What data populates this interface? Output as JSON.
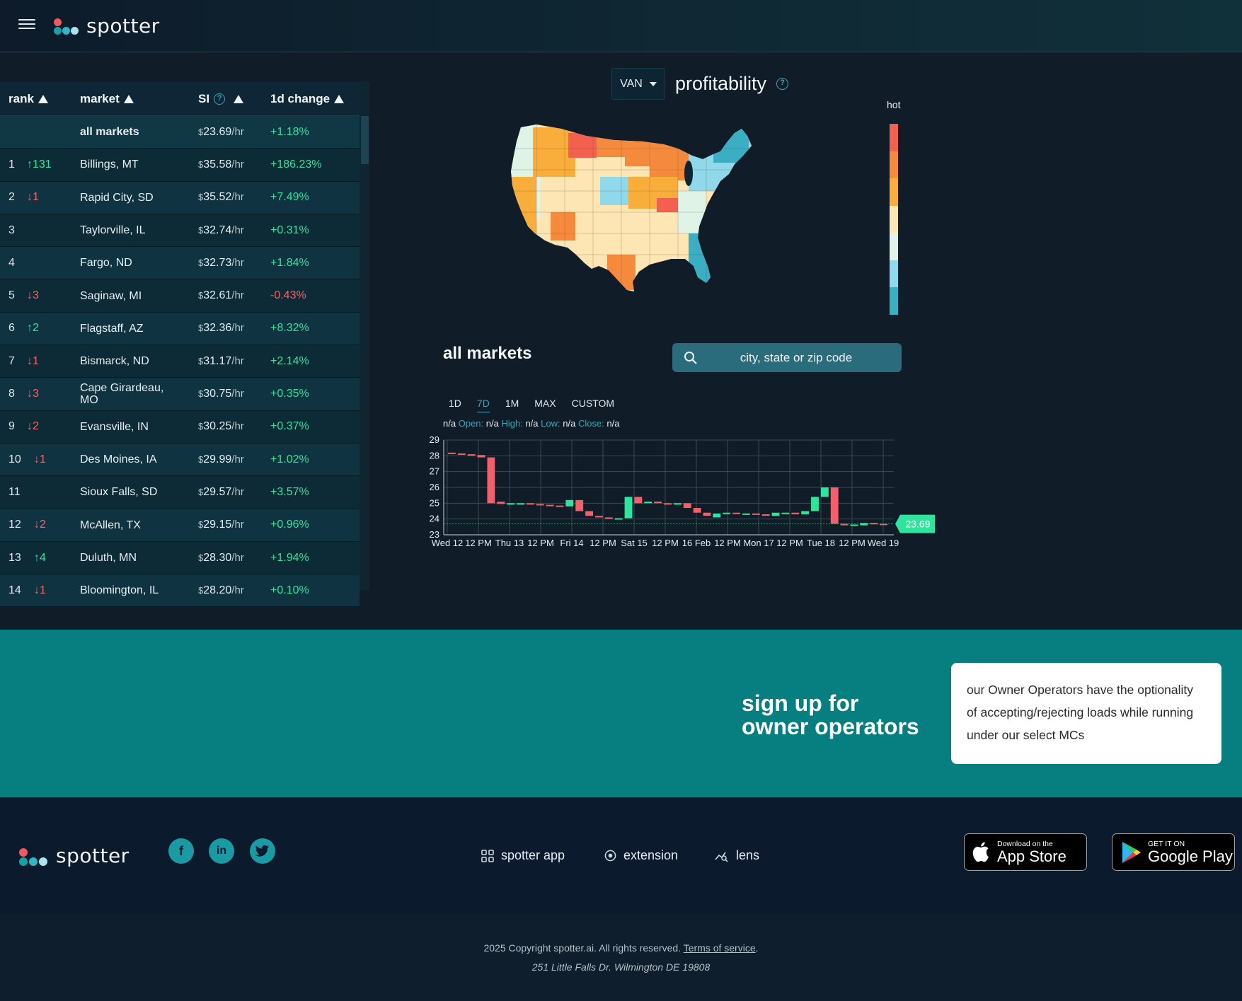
{
  "header": {
    "brand": "spotter"
  },
  "table": {
    "columns": {
      "rank": "rank",
      "market": "market",
      "si": "SI",
      "change": "1d change"
    },
    "all_row": {
      "market": "all markets",
      "si": "23.69",
      "unit": "/hr",
      "change": "+1.18%"
    },
    "rows": [
      {
        "rank": "1",
        "move": "↑131",
        "dir": "up",
        "market": "Billings, MT",
        "si": "35.58",
        "change": "+186.23%",
        "cdir": "up"
      },
      {
        "rank": "2",
        "move": "↓1",
        "dir": "down",
        "market": "Rapid City, SD",
        "si": "35.52",
        "change": "+7.49%",
        "cdir": "up"
      },
      {
        "rank": "3",
        "move": "",
        "dir": "",
        "market": "Taylorville, IL",
        "si": "32.74",
        "change": "+0.31%",
        "cdir": "up"
      },
      {
        "rank": "4",
        "move": "",
        "dir": "",
        "market": "Fargo, ND",
        "si": "32.73",
        "change": "+1.84%",
        "cdir": "up"
      },
      {
        "rank": "5",
        "move": "↓3",
        "dir": "down",
        "market": "Saginaw, MI",
        "si": "32.61",
        "change": "-0.43%",
        "cdir": "down"
      },
      {
        "rank": "6",
        "move": "↑2",
        "dir": "up",
        "market": "Flagstaff, AZ",
        "si": "32.36",
        "change": "+8.32%",
        "cdir": "up"
      },
      {
        "rank": "7",
        "move": "↓1",
        "dir": "down",
        "market": "Bismarck, ND",
        "si": "31.17",
        "change": "+2.14%",
        "cdir": "up"
      },
      {
        "rank": "8",
        "move": "↓3",
        "dir": "down",
        "market": "Cape Girardeau, MO",
        "si": "30.75",
        "change": "+0.35%",
        "cdir": "up"
      },
      {
        "rank": "9",
        "move": "↓2",
        "dir": "down",
        "market": "Evansville, IN",
        "si": "30.25",
        "change": "+0.37%",
        "cdir": "up"
      },
      {
        "rank": "10",
        "move": "↓1",
        "dir": "down",
        "market": "Des Moines, IA",
        "si": "29.99",
        "change": "+1.02%",
        "cdir": "up"
      },
      {
        "rank": "11",
        "move": "",
        "dir": "",
        "market": "Sioux Falls, SD",
        "si": "29.57",
        "change": "+3.57%",
        "cdir": "up"
      },
      {
        "rank": "12",
        "move": "↓2",
        "dir": "down",
        "market": "McAllen, TX",
        "si": "29.15",
        "change": "+0.96%",
        "cdir": "up"
      },
      {
        "rank": "13",
        "move": "↑4",
        "dir": "up",
        "market": "Duluth, MN",
        "si": "28.30",
        "change": "+1.94%",
        "cdir": "up"
      },
      {
        "rank": "14",
        "move": "↓1",
        "dir": "down",
        "market": "Bloomington, IL",
        "si": "28.20",
        "change": "+0.10%",
        "cdir": "up"
      }
    ],
    "unit": "/hr",
    "currency": "$"
  },
  "map_panel": {
    "equipment": "VAN",
    "title": "profitability",
    "legend_label": "hot",
    "legend_colors": [
      "#f2604f",
      "#f58a3c",
      "#f9ad3a",
      "#fde6b4",
      "#dff3e6",
      "#8fd9ea",
      "#3aaec3"
    ]
  },
  "market_panel": {
    "title": "all markets",
    "search_placeholder": "city, state or zip code",
    "ranges": [
      "1D",
      "7D",
      "1M",
      "MAX",
      "CUSTOM"
    ],
    "active_range": "7D",
    "ohlc": {
      "lead": "n/a",
      "open_label": "Open:",
      "open": "n/a",
      "high_label": "High:",
      "high": "n/a",
      "low_label": "Low:",
      "low": "n/a",
      "close_label": "Close:",
      "close": "n/a"
    }
  },
  "chart_data": {
    "type": "candlestick",
    "ylim": [
      23,
      29
    ],
    "yticks": [
      23,
      24,
      25,
      26,
      27,
      28,
      29
    ],
    "xticks": [
      "Wed 12",
      "12 PM",
      "Thu 13",
      "12 PM",
      "Fri 14",
      "12 PM",
      "Sat 15",
      "12 PM",
      "16 Feb",
      "12 PM",
      "Mon 17",
      "12 PM",
      "Tue 18",
      "12 PM",
      "Wed 19"
    ],
    "last_value": "23.69",
    "candles": [
      {
        "o": 28.2,
        "c": 28.15
      },
      {
        "o": 28.15,
        "c": 28.1
      },
      {
        "o": 28.1,
        "c": 28.05
      },
      {
        "o": 28.05,
        "c": 27.9
      },
      {
        "o": 27.9,
        "c": 25.0
      },
      {
        "o": 25.1,
        "c": 24.95
      },
      {
        "o": 24.95,
        "c": 25.0
      },
      {
        "o": 25.0,
        "c": 25.0
      },
      {
        "o": 25.0,
        "c": 24.95
      },
      {
        "o": 24.95,
        "c": 24.9
      },
      {
        "o": 24.9,
        "c": 24.85
      },
      {
        "o": 24.85,
        "c": 24.8
      },
      {
        "o": 24.8,
        "c": 25.2
      },
      {
        "o": 25.2,
        "c": 24.5
      },
      {
        "o": 24.5,
        "c": 24.2
      },
      {
        "o": 24.2,
        "c": 24.1
      },
      {
        "o": 24.1,
        "c": 24.05
      },
      {
        "o": 24.05,
        "c": 24.05
      },
      {
        "o": 24.05,
        "c": 25.4
      },
      {
        "o": 25.4,
        "c": 25.0
      },
      {
        "o": 25.0,
        "c": 25.1
      },
      {
        "o": 25.1,
        "c": 25.0
      },
      {
        "o": 25.0,
        "c": 24.95
      },
      {
        "o": 24.95,
        "c": 25.0
      },
      {
        "o": 25.0,
        "c": 24.7
      },
      {
        "o": 24.7,
        "c": 24.4
      },
      {
        "o": 24.4,
        "c": 24.2
      },
      {
        "o": 24.1,
        "c": 24.35
      },
      {
        "o": 24.35,
        "c": 24.4
      },
      {
        "o": 24.4,
        "c": 24.35
      },
      {
        "o": 24.35,
        "c": 24.35
      },
      {
        "o": 24.35,
        "c": 24.3
      },
      {
        "o": 24.3,
        "c": 24.2
      },
      {
        "o": 24.2,
        "c": 24.4
      },
      {
        "o": 24.4,
        "c": 24.4
      },
      {
        "o": 24.4,
        "c": 24.3
      },
      {
        "o": 24.3,
        "c": 24.5
      },
      {
        "o": 24.5,
        "c": 25.4
      },
      {
        "o": 25.4,
        "c": 26.0
      },
      {
        "o": 26.0,
        "c": 23.7
      },
      {
        "o": 23.7,
        "c": 23.6
      },
      {
        "o": 23.6,
        "c": 23.65
      },
      {
        "o": 23.6,
        "c": 23.75
      },
      {
        "o": 23.75,
        "c": 23.7
      },
      {
        "o": 23.7,
        "c": 23.69
      }
    ]
  },
  "signup": {
    "title_line1": "sign up for",
    "title_line2": "owner operators",
    "card": "our Owner Operators have the optionality of accepting/rejecting loads while running under our select MCs"
  },
  "footer": {
    "brand": "spotter",
    "social": [
      "facebook-icon",
      "linkedin-icon",
      "twitter-icon"
    ],
    "links": [
      {
        "label": "spotter app"
      },
      {
        "label": "extension"
      },
      {
        "label": "lens"
      }
    ],
    "appstore": {
      "small": "Download on the",
      "big": "App Store"
    },
    "googleplay": {
      "small": "GET IT ON",
      "big": "Google Play"
    }
  },
  "copyright": {
    "text": "2025 Copyright spotter.ai. All rights reserved.",
    "tos": "Terms of service",
    "address": "251 Little Falls Dr. Wilmington DE 19808"
  }
}
